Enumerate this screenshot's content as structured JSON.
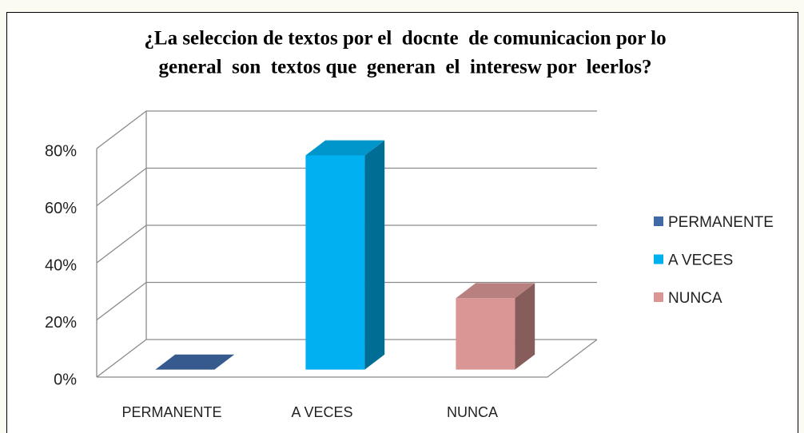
{
  "chart_data": {
    "type": "bar3d",
    "title": [
      "¿La seleccion de textos por el  docnte  de comunicacion por lo",
      "general  son  textos que  generan  el  interesw por  leerlos?"
    ],
    "categories": [
      "PERMANENTE",
      "A VECES",
      "NUNCA"
    ],
    "values": [
      0,
      75,
      25
    ],
    "colors": [
      "#3f6aa6",
      "#00b0f0",
      "#d99694"
    ],
    "ylim": [
      0,
      80
    ],
    "yticks": [
      {
        "value": 0,
        "label": "0%"
      },
      {
        "value": 20,
        "label": "20%"
      },
      {
        "value": 40,
        "label": "40%"
      },
      {
        "value": 60,
        "label": "60%"
      },
      {
        "value": 80,
        "label": "80%"
      }
    ],
    "grid": true,
    "legend": "right"
  }
}
